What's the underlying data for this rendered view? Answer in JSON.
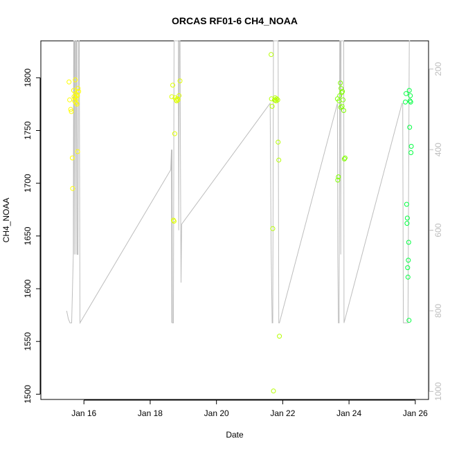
{
  "chart_data": {
    "type": "scatter",
    "title": "ORCAS RF01-6 CH4_NOAA",
    "xlabel": "Date",
    "ylabel": "CH4_NOAA",
    "x_tick_labels": [
      "Jan 16",
      "Jan 18",
      "Jan 20",
      "Jan 22",
      "Jan 24",
      "Jan 26"
    ],
    "x_tick_values": [
      16,
      18,
      20,
      22,
      24,
      26
    ],
    "xlim": [
      14.7,
      26.4
    ],
    "y_ticks": [
      1500,
      1550,
      1600,
      1650,
      1700,
      1750,
      1800
    ],
    "ylim": [
      1495,
      1835
    ],
    "right_axis": {
      "ticks": [
        200,
        400,
        600,
        800,
        1000
      ],
      "lim": [
        130,
        1020
      ],
      "inverted": true,
      "color": "#bdbdbd"
    },
    "grid": false,
    "legend": "none",
    "series": [
      {
        "color": "#ffff00",
        "points": [
          [
            15.55,
            1796
          ],
          [
            15.57,
            1779
          ],
          [
            15.6,
            1770
          ],
          [
            15.62,
            1768
          ],
          [
            15.65,
            1724
          ],
          [
            15.66,
            1695
          ],
          [
            15.7,
            1782
          ],
          [
            15.72,
            1778
          ],
          [
            15.74,
            1798
          ],
          [
            15.75,
            1785
          ],
          [
            15.77,
            1780
          ],
          [
            15.79,
            1775
          ],
          [
            15.8,
            1783
          ],
          [
            15.82,
            1790
          ],
          [
            15.84,
            1787
          ],
          [
            15.78,
            1784
          ],
          [
            15.76,
            1776
          ],
          [
            15.73,
            1781
          ],
          [
            15.81,
            1730
          ],
          [
            15.69,
            1788
          ]
        ]
      },
      {
        "color": "#dfff00",
        "points": [
          [
            18.65,
            1782
          ],
          [
            18.68,
            1793
          ],
          [
            18.7,
            1665
          ],
          [
            18.72,
            1664
          ],
          [
            18.74,
            1747
          ],
          [
            18.75,
            1781
          ],
          [
            18.78,
            1779
          ],
          [
            18.8,
            1778
          ],
          [
            18.84,
            1779
          ],
          [
            18.87,
            1783
          ],
          [
            18.9,
            1797
          ],
          [
            18.82,
            1780
          ]
        ]
      },
      {
        "color": "#b5ff00",
        "points": [
          [
            21.65,
            1822
          ],
          [
            21.66,
            1780
          ],
          [
            21.68,
            1773
          ],
          [
            21.7,
            1657
          ],
          [
            21.72,
            1503
          ],
          [
            21.75,
            1779
          ],
          [
            21.78,
            1779
          ],
          [
            21.8,
            1778
          ],
          [
            21.82,
            1780
          ],
          [
            21.85,
            1779
          ],
          [
            21.86,
            1739
          ],
          [
            21.88,
            1722
          ],
          [
            21.9,
            1555
          ],
          [
            21.77,
            1781
          ]
        ]
      },
      {
        "color": "#7fff00",
        "points": [
          [
            23.65,
            1780
          ],
          [
            23.66,
            1703
          ],
          [
            23.68,
            1706
          ],
          [
            23.7,
            1778
          ],
          [
            23.72,
            1783
          ],
          [
            23.74,
            1795
          ],
          [
            23.76,
            1790
          ],
          [
            23.78,
            1786
          ],
          [
            23.8,
            1787
          ],
          [
            23.82,
            1779
          ],
          [
            23.75,
            1772
          ],
          [
            23.84,
            1769
          ],
          [
            23.86,
            1723
          ],
          [
            23.88,
            1724
          ],
          [
            23.79,
            1773
          ]
        ]
      },
      {
        "color": "#00ff40",
        "points": [
          [
            25.7,
            1777
          ],
          [
            25.72,
            1785
          ],
          [
            25.74,
            1680
          ],
          [
            25.75,
            1662
          ],
          [
            25.76,
            1667
          ],
          [
            25.77,
            1620
          ],
          [
            25.78,
            1611
          ],
          [
            25.79,
            1627
          ],
          [
            25.8,
            1644
          ],
          [
            25.81,
            1570
          ],
          [
            25.82,
            1788
          ],
          [
            25.84,
            1778
          ],
          [
            25.86,
            1777
          ],
          [
            25.85,
            1783
          ],
          [
            25.83,
            1753
          ],
          [
            25.87,
            1729
          ],
          [
            25.88,
            1735
          ]
        ]
      }
    ],
    "line_series": {
      "color": "#bdbdbd",
      "axis": "right",
      "points": [
        [
          15.48,
          800
        ],
        [
          15.53,
          820
        ],
        [
          15.58,
          830
        ],
        [
          15.63,
          830
        ],
        [
          15.68,
          660
        ],
        [
          15.69,
          130
        ],
        [
          15.7,
          130
        ],
        [
          15.71,
          660
        ],
        [
          15.72,
          130
        ],
        [
          15.73,
          130
        ],
        [
          15.74,
          130
        ],
        [
          15.76,
          660
        ],
        [
          15.77,
          130
        ],
        [
          15.78,
          130
        ],
        [
          15.79,
          130
        ],
        [
          15.8,
          660
        ],
        [
          15.82,
          660
        ],
        [
          15.84,
          130
        ],
        [
          15.85,
          130
        ],
        [
          15.86,
          130
        ],
        [
          15.88,
          830
        ],
        [
          18.62,
          450
        ],
        [
          18.64,
          400
        ],
        [
          18.65,
          830
        ],
        [
          18.66,
          400
        ],
        [
          18.67,
          830
        ],
        [
          18.7,
          830
        ],
        [
          18.72,
          130
        ],
        [
          18.74,
          130
        ],
        [
          18.75,
          130
        ],
        [
          18.76,
          130
        ],
        [
          18.78,
          130
        ],
        [
          18.8,
          130
        ],
        [
          18.82,
          130
        ],
        [
          18.84,
          130
        ],
        [
          18.85,
          130
        ],
        [
          18.86,
          600
        ],
        [
          18.88,
          130
        ],
        [
          18.9,
          130
        ],
        [
          18.92,
          560
        ],
        [
          18.93,
          730
        ],
        [
          18.95,
          585
        ],
        [
          21.62,
          285
        ],
        [
          21.65,
          640
        ],
        [
          21.68,
          830
        ],
        [
          21.7,
          830
        ],
        [
          21.72,
          130
        ],
        [
          21.74,
          130
        ],
        [
          21.76,
          130
        ],
        [
          21.78,
          130
        ],
        [
          21.8,
          130
        ],
        [
          21.82,
          130
        ],
        [
          21.84,
          130
        ],
        [
          21.85,
          130
        ],
        [
          21.86,
          130
        ],
        [
          21.88,
          830
        ],
        [
          21.9,
          830
        ],
        [
          23.65,
          285
        ],
        [
          23.66,
          660
        ],
        [
          23.68,
          830
        ],
        [
          23.7,
          830
        ],
        [
          23.72,
          130
        ],
        [
          23.74,
          130
        ],
        [
          23.75,
          660
        ],
        [
          23.76,
          130
        ],
        [
          23.78,
          130
        ],
        [
          23.79,
          130
        ],
        [
          23.8,
          130
        ],
        [
          23.82,
          130
        ],
        [
          23.83,
          130
        ],
        [
          23.84,
          130
        ],
        [
          23.85,
          830
        ],
        [
          25.6,
          285
        ],
        [
          25.62,
          285
        ],
        [
          25.64,
          830
        ],
        [
          25.66,
          830
        ],
        [
          25.68,
          830
        ],
        [
          25.7,
          830
        ],
        [
          25.72,
          830
        ],
        [
          25.74,
          830
        ],
        [
          25.76,
          830
        ],
        [
          25.78,
          830
        ],
        [
          25.82,
          130
        ],
        [
          25.84,
          130
        ]
      ]
    }
  }
}
